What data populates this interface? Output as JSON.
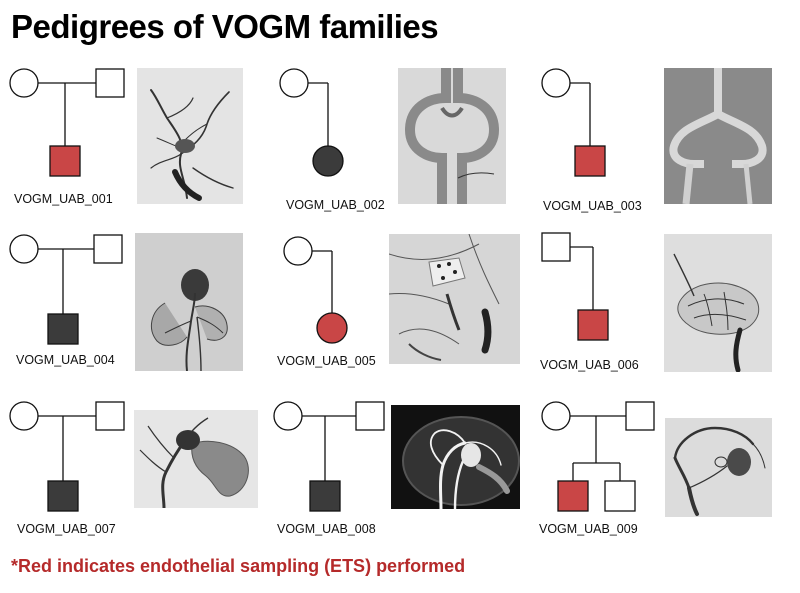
{
  "title": "Pedigrees of VOGM families",
  "footnote": "*Red indicates endothelial sampling (ETS) performed",
  "colors": {
    "ets_performed": "#c94646",
    "affected_no_ets": "#3b3b3b",
    "unaffected": "#ffffff",
    "outline": "#111111",
    "footnote": "#b52a2a"
  },
  "families": [
    {
      "id": "VOGM_UAB_001",
      "parents": [
        "female",
        "male"
      ],
      "children": [
        {
          "sex": "male",
          "status": "ets"
        }
      ]
    },
    {
      "id": "VOGM_UAB_002",
      "parents": [
        "female"
      ],
      "children": [
        {
          "sex": "female",
          "status": "affected"
        }
      ]
    },
    {
      "id": "VOGM_UAB_003",
      "parents": [
        "female"
      ],
      "children": [
        {
          "sex": "male",
          "status": "ets"
        }
      ]
    },
    {
      "id": "VOGM_UAB_004",
      "parents": [
        "female",
        "male"
      ],
      "children": [
        {
          "sex": "male",
          "status": "affected"
        }
      ]
    },
    {
      "id": "VOGM_UAB_005",
      "parents": [
        "female"
      ],
      "children": [
        {
          "sex": "female",
          "status": "ets"
        }
      ]
    },
    {
      "id": "VOGM_UAB_006",
      "parents": [
        "male"
      ],
      "children": [
        {
          "sex": "male",
          "status": "ets"
        }
      ]
    },
    {
      "id": "VOGM_UAB_007",
      "parents": [
        "female",
        "male"
      ],
      "children": [
        {
          "sex": "male",
          "status": "affected"
        }
      ]
    },
    {
      "id": "VOGM_UAB_008",
      "parents": [
        "female",
        "male"
      ],
      "children": [
        {
          "sex": "male",
          "status": "affected"
        }
      ]
    },
    {
      "id": "VOGM_UAB_009",
      "parents": [
        "female",
        "male"
      ],
      "children": [
        {
          "sex": "male",
          "status": "ets"
        },
        {
          "sex": "male",
          "status": "unaffected"
        }
      ]
    }
  ]
}
